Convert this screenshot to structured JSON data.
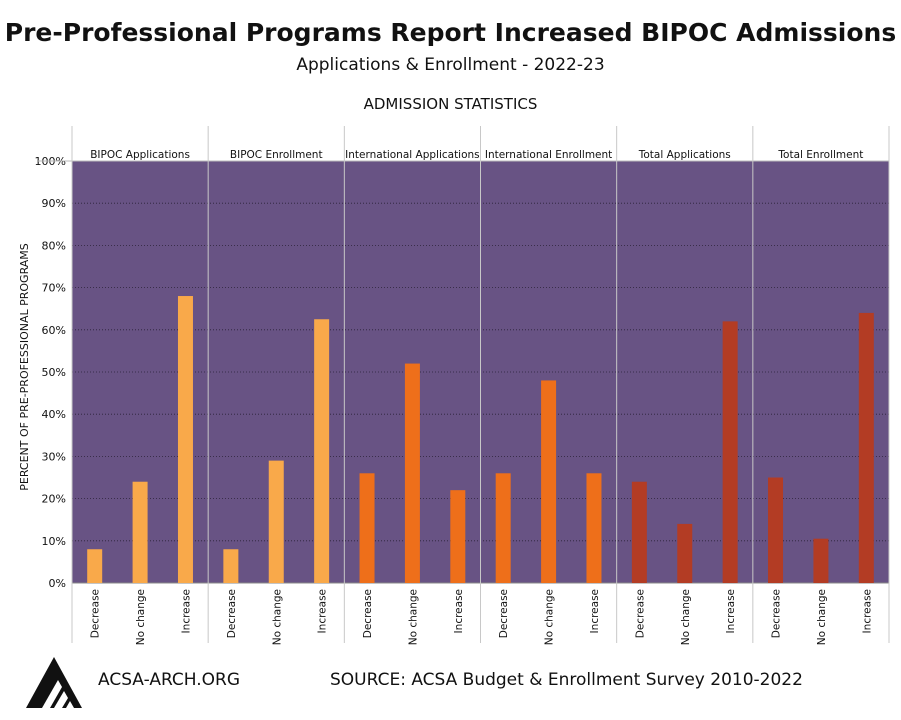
{
  "title": "Pre-Professional Programs Report Increased BIPOC Admissions",
  "subtitle": "Applications & Enrollment - 2022-23",
  "footer": {
    "site": "ACSA-ARCH.ORG",
    "source": "SOURCE: ACSA Budget & Enrollment Survey 2010-2022"
  },
  "logo_icon": "acsa-triangle-logo-icon",
  "chart_data": {
    "type": "bar",
    "title": "ADMISSION STATISTICS",
    "ylabel": "PERCENT OF PRE-PROFESSIONAL PROGRAMS",
    "ylim": [
      0,
      100
    ],
    "yticks": [
      "0%",
      "10%",
      "20%",
      "30%",
      "40%",
      "50%",
      "60%",
      "70%",
      "80%",
      "90%",
      "100%"
    ],
    "grid": true,
    "background": "#685384",
    "categories": [
      "Decrease",
      "No change",
      "Increase"
    ],
    "panels": [
      {
        "name": "BIPOC Applications",
        "color": "#f9a94a",
        "values": [
          8,
          24,
          68
        ]
      },
      {
        "name": "BIPOC Enrollment",
        "color": "#f9a94a",
        "values": [
          8,
          29,
          62.5
        ]
      },
      {
        "name": "International Applications",
        "color": "#ee6f1a",
        "values": [
          26,
          52,
          22
        ]
      },
      {
        "name": "International Enrollment",
        "color": "#ee6f1a",
        "values": [
          26,
          48,
          26
        ]
      },
      {
        "name": "Total Applications",
        "color": "#b33c24",
        "values": [
          24,
          14,
          62
        ]
      },
      {
        "name": "Total Enrollment",
        "color": "#b33c24",
        "values": [
          25,
          10.5,
          64
        ]
      }
    ]
  }
}
